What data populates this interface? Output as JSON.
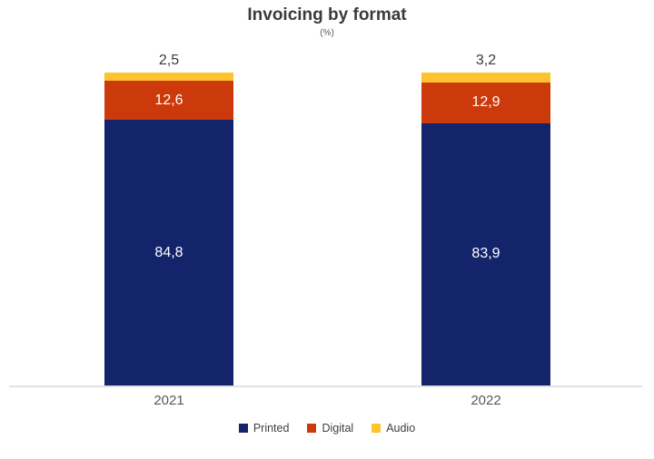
{
  "chart_data": {
    "type": "bar",
    "stacked": true,
    "title": "Invoicing by format",
    "subtitle": "(%)",
    "categories": [
      "2021",
      "2022"
    ],
    "series": [
      {
        "name": "Printed",
        "color": "#13246b",
        "values": [
          84.8,
          83.9
        ],
        "display": [
          "84,8",
          "83,9"
        ],
        "label_position": "inside"
      },
      {
        "name": "Digital",
        "color": "#cc3a0c",
        "values": [
          12.6,
          12.9
        ],
        "display": [
          "12,6",
          "12,9"
        ],
        "label_position": "inside"
      },
      {
        "name": "Audio",
        "color": "#fec32d",
        "values": [
          2.5,
          3.2
        ],
        "display": [
          "2,5",
          "3,2"
        ],
        "label_position": "above"
      }
    ],
    "legend": {
      "position": "bottom",
      "entries": [
        "Printed",
        "Digital",
        "Audio"
      ]
    },
    "ylim": [
      0,
      100
    ],
    "grid": false,
    "axis_line_color": "#e2e2e2",
    "value_label_color_inside": "#ffffff",
    "value_label_color_above": "#3a3a3a"
  }
}
